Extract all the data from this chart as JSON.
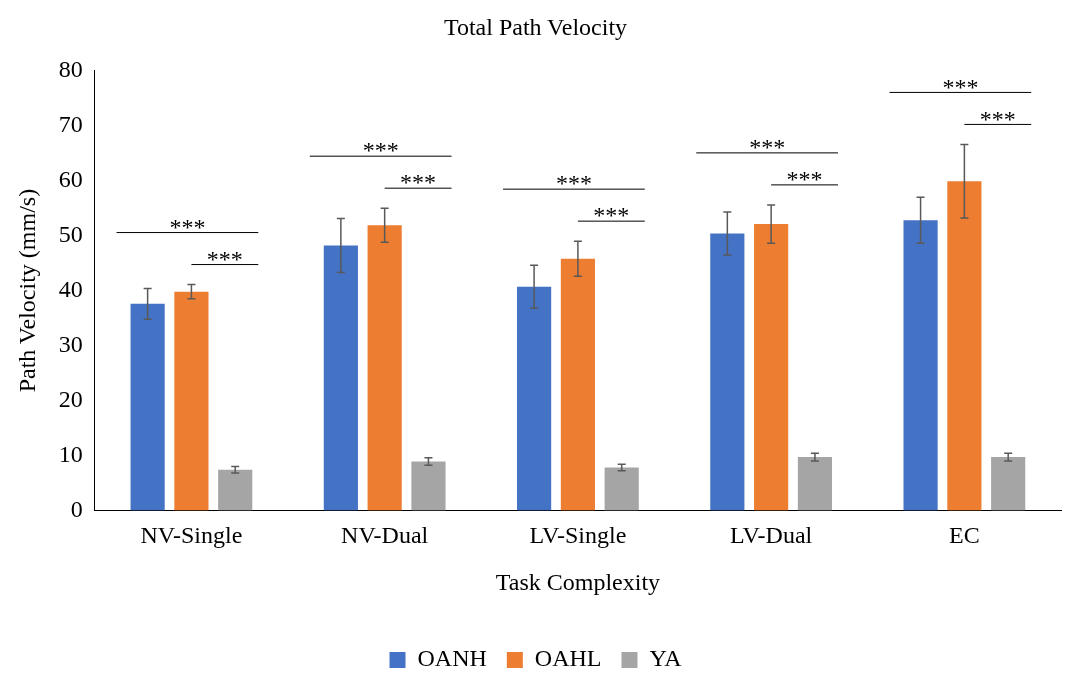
{
  "chart_data": {
    "type": "bar",
    "title": "Total Path Velocity",
    "xlabel": "Task Complexity",
    "ylabel": "Path Velocity (mm/s)",
    "categories": [
      "NV-Single",
      "NV-Dual",
      "LV-Single",
      "LV-Dual",
      "EC"
    ],
    "series": [
      {
        "name": "OANH",
        "color": "#4472c4",
        "values": [
          37.6,
          48.2,
          40.7,
          50.4,
          52.8
        ],
        "errors": [
          2.8,
          4.9,
          3.9,
          3.9,
          4.2
        ]
      },
      {
        "name": "OAHL",
        "color": "#ed7d31",
        "values": [
          39.8,
          51.9,
          45.8,
          52.1,
          59.9
        ],
        "errors": [
          1.3,
          3.1,
          3.2,
          3.5,
          6.7
        ]
      },
      {
        "name": "YA",
        "color": "#a5a5a5",
        "values": [
          7.4,
          8.9,
          7.8,
          9.7,
          9.7
        ],
        "errors": [
          0.6,
          0.7,
          0.6,
          0.7,
          0.7
        ]
      }
    ],
    "ylim": [
      0,
      80
    ],
    "yticks": [
      0,
      10,
      20,
      30,
      40,
      50,
      60,
      70,
      80
    ],
    "grid": false,
    "legend": "bottom",
    "annotations": [
      "***",
      "***",
      "***",
      "***",
      "***",
      "***",
      "***",
      "***",
      "***",
      "***"
    ]
  }
}
